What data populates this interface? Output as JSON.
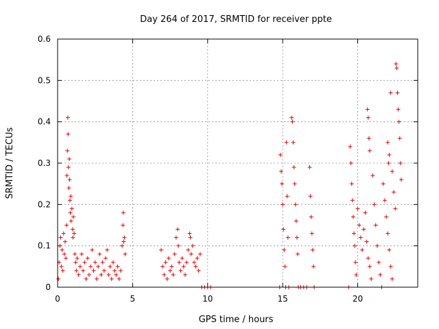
{
  "chart_data": {
    "type": "scatter",
    "title": "Day 264 of 2017, SRMTID for receiver ppte",
    "xlabel": "GPS time / hours",
    "ylabel": "SRMTID / TECUs",
    "xlim": [
      0,
      24
    ],
    "ylim": [
      0,
      0.6
    ],
    "xticks": [
      0,
      5,
      10,
      15,
      20
    ],
    "xtick_labels": [
      "0",
      "5",
      "10",
      "15",
      "20"
    ],
    "yticks": [
      0,
      0.1,
      0.2,
      0.3,
      0.4,
      0.5,
      0.6
    ],
    "ytick_labels": [
      "0",
      "0.1",
      "0.2",
      "0.3",
      "0.4",
      "0.5",
      "0.6"
    ],
    "grid": true,
    "marker": "+",
    "color": "#e00000",
    "series": [
      {
        "name": "SRMTID",
        "points": [
          [
            0.05,
            0.02
          ],
          [
            0.1,
            0.06
          ],
          [
            0.15,
            0.1
          ],
          [
            0.2,
            0.12
          ],
          [
            0.25,
            0.05
          ],
          [
            0.3,
            0.09
          ],
          [
            0.35,
            0.04
          ],
          [
            0.4,
            0.13
          ],
          [
            0.45,
            0.08
          ],
          [
            0.5,
            0.11
          ],
          [
            0.55,
            0.07
          ],
          [
            0.6,
            0.15
          ],
          [
            0.62,
            0.27
          ],
          [
            0.65,
            0.33
          ],
          [
            0.68,
            0.41
          ],
          [
            0.7,
            0.37
          ],
          [
            0.72,
            0.29
          ],
          [
            0.75,
            0.24
          ],
          [
            0.78,
            0.31
          ],
          [
            0.8,
            0.26
          ],
          [
            0.82,
            0.21
          ],
          [
            0.85,
            0.18
          ],
          [
            0.88,
            0.22
          ],
          [
            0.9,
            0.16
          ],
          [
            0.95,
            0.19
          ],
          [
            1.0,
            0.14
          ],
          [
            1.02,
            0.12
          ],
          [
            1.05,
            0.17
          ],
          [
            1.1,
            0.13
          ],
          [
            1.15,
            0.08
          ],
          [
            1.2,
            0.06
          ],
          [
            1.25,
            0.04
          ],
          [
            1.3,
            0.07
          ],
          [
            1.4,
            0.03
          ],
          [
            1.5,
            0.05
          ],
          [
            1.6,
            0.08
          ],
          [
            1.7,
            0.04
          ],
          [
            1.8,
            0.06
          ],
          [
            1.9,
            0.02
          ],
          [
            2.0,
            0.07
          ],
          [
            2.1,
            0.03
          ],
          [
            2.2,
            0.05
          ],
          [
            2.3,
            0.09
          ],
          [
            2.4,
            0.04
          ],
          [
            2.5,
            0.06
          ],
          [
            2.6,
            0.02
          ],
          [
            2.7,
            0.05
          ],
          [
            2.8,
            0.08
          ],
          [
            2.9,
            0.03
          ],
          [
            3.0,
            0.06
          ],
          [
            3.1,
            0.04
          ],
          [
            3.2,
            0.07
          ],
          [
            3.3,
            0.09
          ],
          [
            3.4,
            0.03
          ],
          [
            3.5,
            0.05
          ],
          [
            3.6,
            0.02
          ],
          [
            3.7,
            0.06
          ],
          [
            3.8,
            0.04
          ],
          [
            3.9,
            0.03
          ],
          [
            4.0,
            0.05
          ],
          [
            4.1,
            0.02
          ],
          [
            4.2,
            0.04
          ],
          [
            4.3,
            0.1
          ],
          [
            4.35,
            0.15
          ],
          [
            4.38,
            0.18
          ],
          [
            4.4,
            0.11
          ],
          [
            4.45,
            0.12
          ],
          [
            4.5,
            0.08
          ],
          [
            6.9,
            0.09
          ],
          [
            7.0,
            0.05
          ],
          [
            7.1,
            0.03
          ],
          [
            7.2,
            0.06
          ],
          [
            7.3,
            0.02
          ],
          [
            7.4,
            0.07
          ],
          [
            7.5,
            0.04
          ],
          [
            7.6,
            0.05
          ],
          [
            7.7,
            0.03
          ],
          [
            7.8,
            0.08
          ],
          [
            7.9,
            0.12
          ],
          [
            8.0,
            0.14
          ],
          [
            8.05,
            0.1
          ],
          [
            8.1,
            0.06
          ],
          [
            8.2,
            0.04
          ],
          [
            8.3,
            0.07
          ],
          [
            8.4,
            0.05
          ],
          [
            8.5,
            0.03
          ],
          [
            8.6,
            0.06
          ],
          [
            8.7,
            0.09
          ],
          [
            8.8,
            0.13
          ],
          [
            8.85,
            0.12
          ],
          [
            8.9,
            0.08
          ],
          [
            9.0,
            0.1
          ],
          [
            9.1,
            0.06
          ],
          [
            9.2,
            0.05
          ],
          [
            9.3,
            0.07
          ],
          [
            9.4,
            0.04
          ],
          [
            9.5,
            0.08
          ],
          [
            9.6,
            0.0
          ],
          [
            9.8,
            0.0
          ],
          [
            10.0,
            0.0
          ],
          [
            10.2,
            0.0
          ],
          [
            14.8,
            0.0
          ],
          [
            14.85,
            0.32
          ],
          [
            14.9,
            0.28
          ],
          [
            14.95,
            0.25
          ],
          [
            15.0,
            0.2
          ],
          [
            15.05,
            0.14
          ],
          [
            15.1,
            0.09
          ],
          [
            15.15,
            0.05
          ],
          [
            15.2,
            0.0
          ],
          [
            15.25,
            0.35
          ],
          [
            15.3,
            0.22
          ],
          [
            15.35,
            0.12
          ],
          [
            15.4,
            0.0
          ],
          [
            15.6,
            0.41
          ],
          [
            15.65,
            0.4
          ],
          [
            15.7,
            0.35
          ],
          [
            15.75,
            0.29
          ],
          [
            15.8,
            0.25
          ],
          [
            15.85,
            0.2
          ],
          [
            15.9,
            0.16
          ],
          [
            15.95,
            0.12
          ],
          [
            16.0,
            0.08
          ],
          [
            16.05,
            0.0
          ],
          [
            16.2,
            0.0
          ],
          [
            16.4,
            0.0
          ],
          [
            16.6,
            0.0
          ],
          [
            16.8,
            0.29
          ],
          [
            16.85,
            0.22
          ],
          [
            16.9,
            0.17
          ],
          [
            16.95,
            0.13
          ],
          [
            17.0,
            0.09
          ],
          [
            17.05,
            0.05
          ],
          [
            17.1,
            0.0
          ],
          [
            19.4,
            0.0
          ],
          [
            19.5,
            0.34
          ],
          [
            19.55,
            0.3
          ],
          [
            19.6,
            0.25
          ],
          [
            19.65,
            0.21
          ],
          [
            19.7,
            0.17
          ],
          [
            19.75,
            0.13
          ],
          [
            19.8,
            0.1
          ],
          [
            19.85,
            0.06
          ],
          [
            19.9,
            0.03
          ],
          [
            20.0,
            0.19
          ],
          [
            20.1,
            0.15
          ],
          [
            20.2,
            0.12
          ],
          [
            20.3,
            0.09
          ],
          [
            20.4,
            0.14
          ],
          [
            20.5,
            0.18
          ],
          [
            20.6,
            0.11
          ],
          [
            20.7,
            0.07
          ],
          [
            20.8,
            0.05
          ],
          [
            20.9,
            0.02
          ],
          [
            20.65,
            0.43
          ],
          [
            20.7,
            0.41
          ],
          [
            20.75,
            0.36
          ],
          [
            20.8,
            0.33
          ],
          [
            21.0,
            0.27
          ],
          [
            21.1,
            0.2
          ],
          [
            21.2,
            0.15
          ],
          [
            21.3,
            0.1
          ],
          [
            21.4,
            0.06
          ],
          [
            21.5,
            0.03
          ],
          [
            21.6,
            0.0
          ],
          [
            21.7,
            0.25
          ],
          [
            21.8,
            0.21
          ],
          [
            21.9,
            0.17
          ],
          [
            22.0,
            0.13
          ],
          [
            22.1,
            0.09
          ],
          [
            22.2,
            0.05
          ],
          [
            22.3,
            0.02
          ],
          [
            22.0,
            0.35
          ],
          [
            22.05,
            0.3
          ],
          [
            22.1,
            0.32
          ],
          [
            22.2,
            0.47
          ],
          [
            22.3,
            0.28
          ],
          [
            22.4,
            0.23
          ],
          [
            22.5,
            0.19
          ],
          [
            22.55,
            0.54
          ],
          [
            22.6,
            0.53
          ],
          [
            22.65,
            0.47
          ],
          [
            22.7,
            0.43
          ],
          [
            22.75,
            0.4
          ],
          [
            22.8,
            0.36
          ],
          [
            22.85,
            0.3
          ],
          [
            22.9,
            0.26
          ]
        ]
      }
    ]
  }
}
